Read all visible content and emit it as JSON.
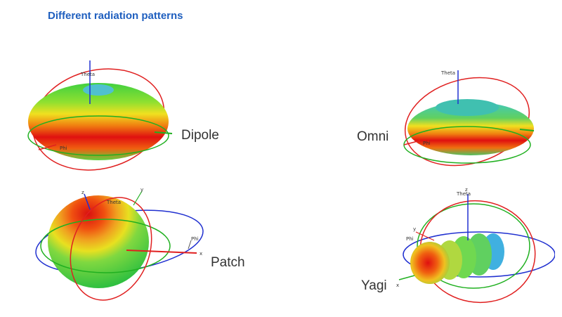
{
  "title": "Different radiation patterns",
  "patterns": {
    "dipole": {
      "label": "Dipole",
      "axis_theta": "Theta",
      "axis_phi": "Phi"
    },
    "omni": {
      "label": "Omni",
      "axis_theta": "Theta",
      "axis_phi": "Phi"
    },
    "patch": {
      "label": "Patch",
      "axis_z": "z",
      "axis_y": "y",
      "axis_x": "x",
      "axis_theta": "Theta",
      "axis_phi": "Phi"
    },
    "yagi": {
      "label": "Yagi",
      "axis_z": "z",
      "axis_y": "y",
      "axis_x": "x",
      "axis_theta": "Theta",
      "axis_phi": "Phi"
    }
  },
  "colors": {
    "title": "#1f5fbf",
    "high_gain": "#e01010",
    "mid_gain": "#f0e020",
    "low_gain": "#20c040",
    "null_gain": "#30a0e0",
    "axis_red": "#e02020",
    "axis_green": "#20b020",
    "axis_blue": "#2030d0"
  }
}
